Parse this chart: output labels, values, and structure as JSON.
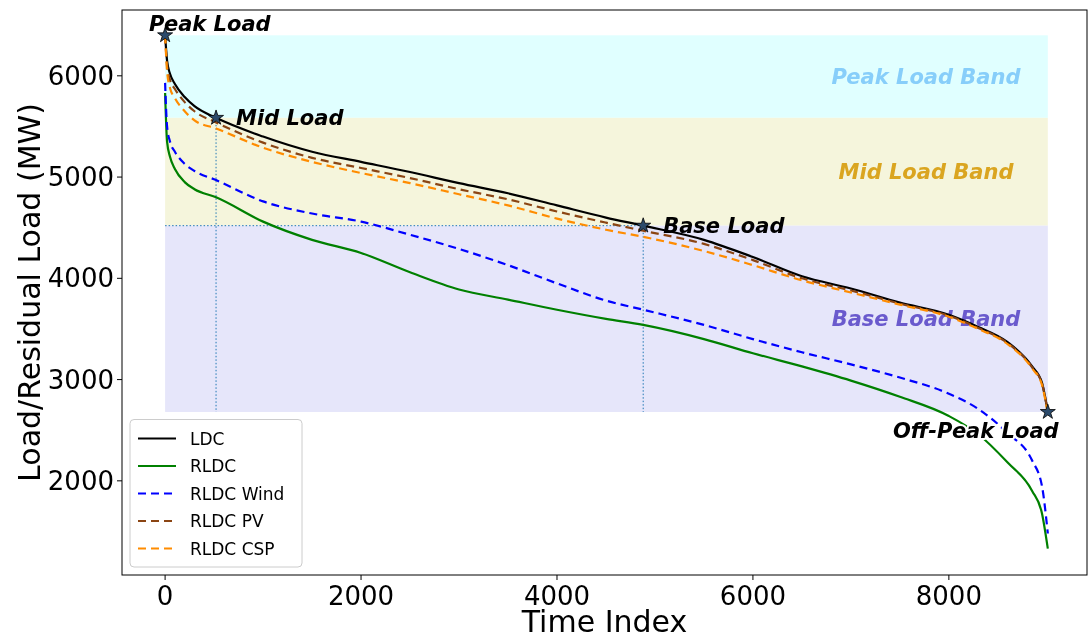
{
  "chart_data": {
    "type": "line",
    "xlabel": "Time Index",
    "ylabel": "Load/Residual Load (MW)",
    "x": [
      0,
      20,
      50,
      100,
      200,
      300,
      520,
      1000,
      1500,
      2000,
      2500,
      3000,
      3500,
      4000,
      4500,
      4880,
      5500,
      6000,
      6500,
      7000,
      7500,
      8000,
      8300,
      8600,
      8850,
      8950,
      9010
    ],
    "series": [
      {
        "name": "LDC",
        "color": "#000000",
        "line_style": "solid",
        "values": [
          6400,
          6150,
          6020,
          5920,
          5790,
          5700,
          5585,
          5400,
          5250,
          5150,
          5050,
          4940,
          4840,
          4720,
          4600,
          4520,
          4380,
          4210,
          4020,
          3900,
          3760,
          3640,
          3520,
          3370,
          3130,
          2970,
          2680
        ]
      },
      {
        "name": "RLDC",
        "color": "#008000",
        "line_style": "solid",
        "values": [
          5830,
          5350,
          5200,
          5080,
          4950,
          4880,
          4800,
          4560,
          4380,
          4250,
          4060,
          3890,
          3790,
          3690,
          3600,
          3540,
          3400,
          3260,
          3130,
          2990,
          2830,
          2640,
          2460,
          2180,
          1900,
          1680,
          1330
        ]
      },
      {
        "name": "RLDC Wind",
        "color": "#0000ff",
        "line_style": "dashed",
        "values": [
          5930,
          5500,
          5350,
          5250,
          5130,
          5060,
          4970,
          4760,
          4640,
          4560,
          4430,
          4290,
          4130,
          3950,
          3780,
          3690,
          3540,
          3400,
          3270,
          3150,
          3020,
          2860,
          2710,
          2470,
          2200,
          1950,
          1480
        ]
      },
      {
        "name": "RLDC PV",
        "color": "#8b4513",
        "line_style": "dashed",
        "values": [
          6400,
          6100,
          5960,
          5870,
          5740,
          5650,
          5540,
          5340,
          5190,
          5090,
          4990,
          4880,
          4780,
          4660,
          4550,
          4470,
          4340,
          4180,
          4000,
          3880,
          3750,
          3630,
          3510,
          3360,
          3120,
          2960,
          2680
        ]
      },
      {
        "name": "RLDC CSP",
        "color": "#ff8c00",
        "line_style": "dashed",
        "values": [
          6400,
          6050,
          5880,
          5780,
          5650,
          5560,
          5480,
          5290,
          5150,
          5040,
          4940,
          4830,
          4720,
          4590,
          4480,
          4410,
          4270,
          4130,
          3980,
          3860,
          3740,
          3620,
          3500,
          3350,
          3110,
          2950,
          2660
        ]
      }
    ],
    "xlim": [
      -440,
      9410
    ],
    "ylim": [
      1070,
      6650
    ],
    "xticks": [
      0,
      2000,
      4000,
      6000,
      8000
    ],
    "yticks": [
      2000,
      3000,
      4000,
      5000,
      6000
    ],
    "grid": false,
    "legend": "bottom left",
    "bands": [
      {
        "axis": "y",
        "from": 5585,
        "to": 6400,
        "label": "Peak Load Band",
        "color": "#e0ffff"
      },
      {
        "axis": "y",
        "from": 4520,
        "to": 5585,
        "label": "Mid Load Band",
        "color": "#f5f5dc"
      },
      {
        "axis": "y",
        "from": 2680,
        "to": 4520,
        "label": "Base Load Band",
        "color": "#e6e6fa"
      }
    ],
    "ref_lines": [
      {
        "axis": "y",
        "value": 4520,
        "color": "#1f77b4",
        "line_style": "dotted"
      },
      {
        "axis": "x",
        "value": 520,
        "color": "#1f77b4",
        "line_style": "dotted"
      },
      {
        "axis": "x",
        "value": 4880,
        "color": "#1f77b4",
        "line_style": "dotted"
      }
    ],
    "annotations": [
      {
        "text": "Peak Load",
        "x": 0,
        "y": 6400
      },
      {
        "text": "Mid Load",
        "x": 520,
        "y": 5585
      },
      {
        "text": "Base Load",
        "x": 4880,
        "y": 4520
      },
      {
        "text": "Off-Peak Load",
        "x": 9010,
        "y": 2680
      }
    ]
  }
}
